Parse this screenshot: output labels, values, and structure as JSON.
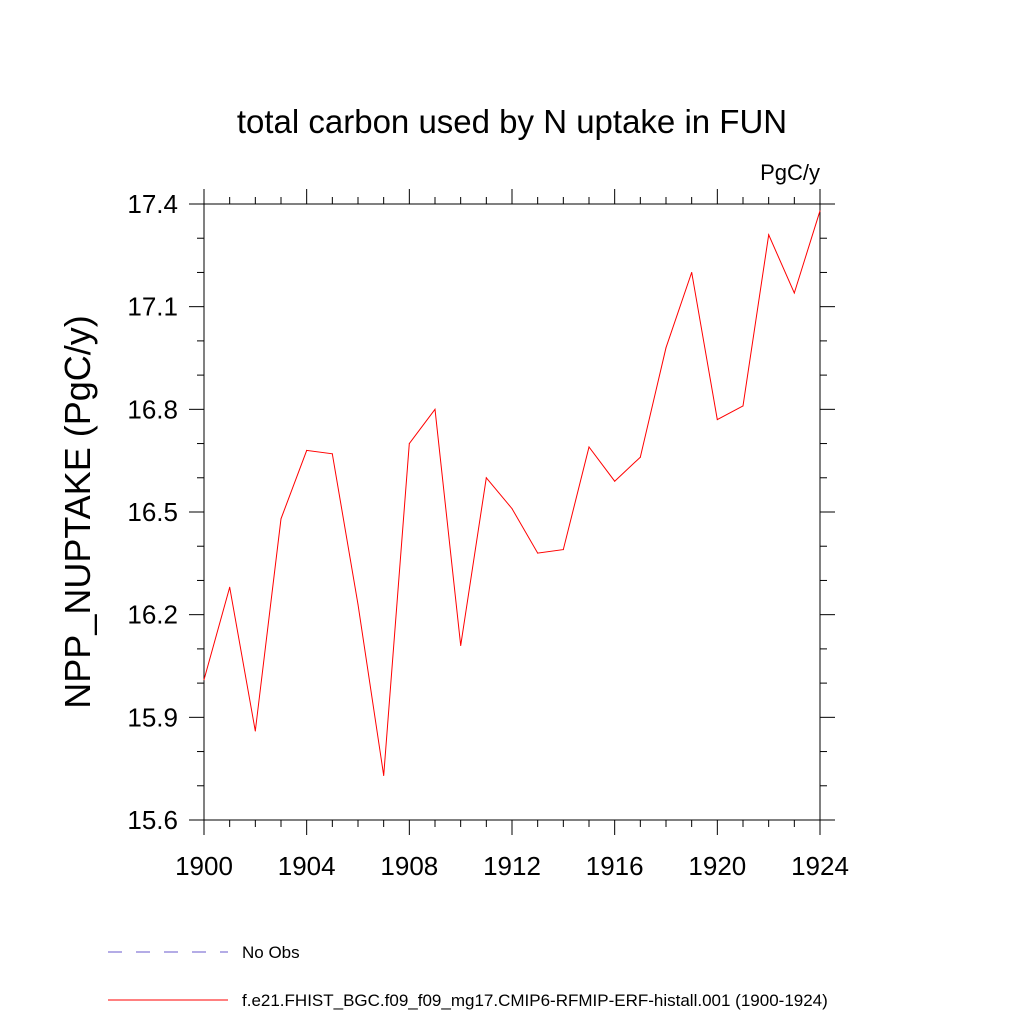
{
  "chart_data": {
    "type": "line",
    "title": "total carbon used by N uptake in FUN",
    "units_label": "PgC/y",
    "xlabel": "",
    "ylabel": "NPP_NUPTAKE  (PgC/y)",
    "xlim": [
      1900,
      1924
    ],
    "ylim": [
      15.6,
      17.4
    ],
    "x_ticks": [
      1900,
      1904,
      1908,
      1912,
      1916,
      1920,
      1924
    ],
    "x_tick_labels": [
      "1900",
      "1904",
      "1908",
      "1912",
      "1916",
      "1920",
      "1924"
    ],
    "y_ticks": [
      15.6,
      15.9,
      16.2,
      16.5,
      16.8,
      17.1,
      17.4
    ],
    "y_tick_labels": [
      "15.6",
      "15.9",
      "16.2",
      "16.5",
      "16.8",
      "17.1",
      "17.4"
    ],
    "grid": false,
    "legend_position": "bottom-left",
    "series": [
      {
        "name": "f.e21.FHIST_BGC.f09_f09_mg17.CMIP6-RFMIP-ERF-histall.001 (1900-1924)",
        "color": "#ff0000",
        "style": "solid",
        "x": [
          1900,
          1901,
          1902,
          1903,
          1904,
          1905,
          1906,
          1907,
          1908,
          1909,
          1910,
          1911,
          1912,
          1913,
          1914,
          1915,
          1916,
          1917,
          1918,
          1919,
          1920,
          1921,
          1922,
          1923,
          1924
        ],
        "y": [
          16.01,
          16.28,
          15.86,
          16.48,
          16.68,
          16.67,
          16.23,
          15.73,
          16.7,
          16.8,
          16.11,
          16.6,
          16.51,
          16.38,
          16.39,
          16.69,
          16.59,
          16.66,
          16.98,
          17.2,
          16.77,
          16.81,
          17.31,
          17.14,
          17.38
        ]
      }
    ],
    "legend": [
      {
        "label": "No Obs",
        "color": "#6a5acd",
        "style": "dashed"
      },
      {
        "label": "f.e21.FHIST_BGC.f09_f09_mg17.CMIP6-RFMIP-ERF-histall.001 (1900-1924)",
        "color": "#ff0000",
        "style": "solid"
      }
    ]
  }
}
